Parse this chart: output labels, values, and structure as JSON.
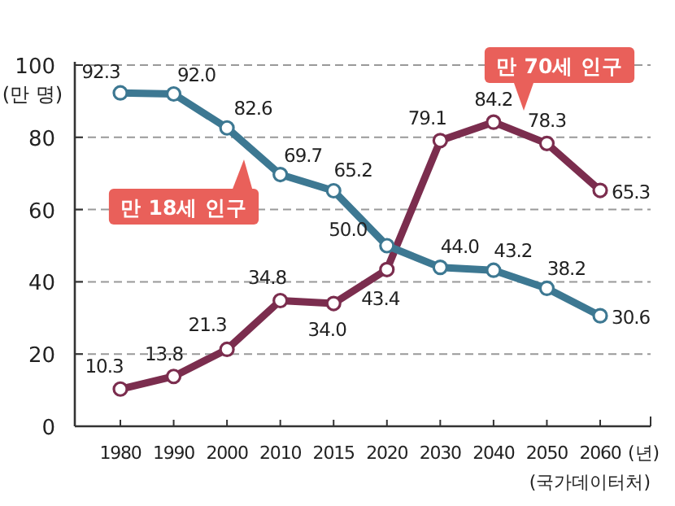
{
  "chart_data": {
    "type": "line",
    "xlabel": "(년)",
    "ylabel": "(만 명)",
    "annotations": [
      "(국가데이터처)"
    ],
    "categories": [
      "1980",
      "1990",
      "2000",
      "2010",
      "2015",
      "2020",
      "2030",
      "2040",
      "2050",
      "2060"
    ],
    "series": [
      {
        "name": "만 18세 인구",
        "color": "#3d7892",
        "values": [
          92.3,
          92.0,
          82.6,
          69.7,
          65.2,
          50.0,
          44.0,
          43.2,
          38.2,
          30.6
        ],
        "value_labels": [
          "92.3",
          "92.0",
          "82.6",
          "69.7",
          "65.2",
          "50.0",
          "44.0",
          "43.2",
          "38.2",
          "30.6"
        ]
      },
      {
        "name": "만 70세 인구",
        "color": "#7b2d4e",
        "values": [
          10.3,
          13.8,
          21.3,
          34.8,
          34.0,
          43.4,
          79.1,
          84.2,
          78.3,
          65.3
        ],
        "value_labels": [
          "10.3",
          "13.8",
          "21.3",
          "34.8",
          "34.0",
          "43.4",
          "79.1",
          "84.2",
          "78.3",
          "65.3"
        ]
      }
    ],
    "ylim": [
      0,
      100
    ],
    "yticks": [
      0,
      20,
      40,
      60,
      80,
      100
    ],
    "grid": "y",
    "marker": "circle",
    "line_style": "solid",
    "legend": false
  }
}
